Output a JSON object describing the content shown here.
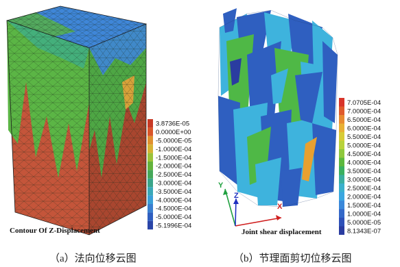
{
  "figure_a": {
    "title": "Contour Of Z-Displacement",
    "caption": "（a）法向位移云图",
    "legend": [
      {
        "label": "3.8736E-05",
        "color": "#c83a26"
      },
      {
        "label": "0.0000E+00",
        "color": "#d9562a"
      },
      {
        "label": "-5.0000E-05",
        "color": "#e0912f"
      },
      {
        "label": "-1.0000E-04",
        "color": "#d6b334"
      },
      {
        "label": "-1.5000E-04",
        "color": "#9bc23a"
      },
      {
        "label": "-2.0000E-04",
        "color": "#64b33c"
      },
      {
        "label": "-2.5000E-04",
        "color": "#45a85a"
      },
      {
        "label": "-3.0000E-04",
        "color": "#3aa58a"
      },
      {
        "label": "-3.5000E-04",
        "color": "#3aa8b8"
      },
      {
        "label": "-4.0000E-04",
        "color": "#3a9fd8"
      },
      {
        "label": "-4.5000E-04",
        "color": "#3a7fd0"
      },
      {
        "label": "-5.0000E-04",
        "color": "#2f5fc0"
      },
      {
        "label": "-5.1996E-04",
        "color": "#2a45a8"
      }
    ]
  },
  "figure_b": {
    "title": "Joint shear displacement",
    "caption": "（b）节理面剪切位移云图",
    "axes": {
      "x": "X",
      "y": "Y",
      "z": "Z"
    },
    "legend": [
      {
        "label": "7.0705E-04",
        "color": "#d8342a"
      },
      {
        "label": "7.0000E-04",
        "color": "#e05a2c"
      },
      {
        "label": "6.5000E-04",
        "color": "#e88a30"
      },
      {
        "label": "6.0000E-04",
        "color": "#e8b034"
      },
      {
        "label": "5.5000E-04",
        "color": "#d8cc36"
      },
      {
        "label": "5.0000E-04",
        "color": "#b8d23a"
      },
      {
        "label": "4.5000E-04",
        "color": "#8ec83c"
      },
      {
        "label": "4.0000E-04",
        "color": "#5cb83e"
      },
      {
        "label": "3.5000E-04",
        "color": "#3ab060"
      },
      {
        "label": "3.0000E-04",
        "color": "#3aaea0"
      },
      {
        "label": "2.5000E-04",
        "color": "#3ab0cc"
      },
      {
        "label": "2.0000E-04",
        "color": "#3aa6e0"
      },
      {
        "label": "1.5000E-04",
        "color": "#3a88da"
      },
      {
        "label": "1.0000E-04",
        "color": "#3468c8"
      },
      {
        "label": "5.0000E-05",
        "color": "#2e50b8"
      },
      {
        "label": "8.1343E-07",
        "color": "#2a3ca0"
      }
    ]
  },
  "colors": {
    "block_top": "#3f86d8",
    "block_front_green": "#5bb545",
    "block_front_red": "#c4553a",
    "block_side_green": "#4ea644",
    "block_side_red": "#a9462f",
    "mesh": "#1c2a1c",
    "joint_dark": "#2f5fc0",
    "joint_light": "#3eb3dd",
    "joint_green": "#4fb846",
    "axis_red": "#d02020",
    "axis_green": "#20a040",
    "axis_blue": "#2030c0"
  }
}
